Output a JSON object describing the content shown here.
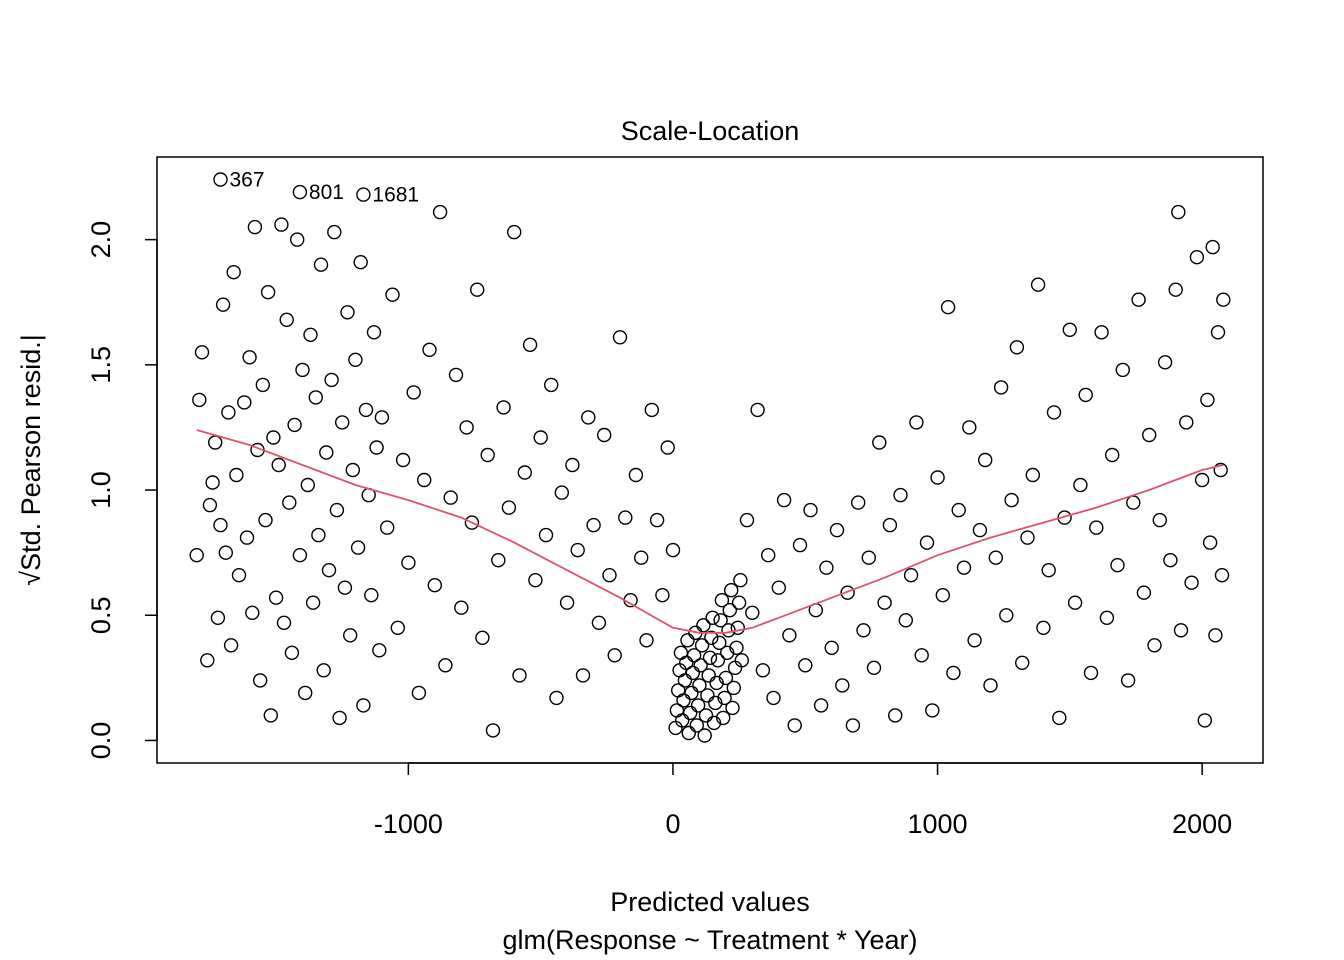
{
  "chart_data": {
    "type": "scatter",
    "title": "Scale-Location",
    "xlabel": "Predicted values",
    "xlabel_sub": "glm(Response ~ Treatment * Year)",
    "ylabel": "√Std. Pearson resid.|",
    "xlim": [
      -1950,
      2230
    ],
    "ylim": [
      -0.09,
      2.33
    ],
    "x_ticks": [
      -1000,
      0,
      1000,
      2000
    ],
    "x_tick_labels": [
      "-1000",
      "0",
      "1000",
      "2000"
    ],
    "y_ticks": [
      0.0,
      0.5,
      1.0,
      1.5,
      2.0
    ],
    "y_tick_labels": [
      "0.0",
      "0.5",
      "1.0",
      "1.5",
      "2.0"
    ],
    "grid": false,
    "legend": "none",
    "point_style": "open-circle",
    "point_color": "#000000",
    "smooth_color": "#DF536B",
    "labeled_points": [
      {
        "label": "367",
        "x": -1710,
        "y": 2.24
      },
      {
        "label": "801",
        "x": -1410,
        "y": 2.19
      },
      {
        "label": "1681",
        "x": -1170,
        "y": 2.18
      }
    ],
    "smooth_line": {
      "x": [
        -1800,
        -1600,
        -1400,
        -1200,
        -1000,
        -800,
        -600,
        -400,
        -200,
        -100,
        0,
        100,
        200,
        300,
        400,
        600,
        800,
        1000,
        1200,
        1400,
        1600,
        1800,
        2000,
        2080
      ],
      "y": [
        1.24,
        1.18,
        1.1,
        1.02,
        0.96,
        0.89,
        0.79,
        0.68,
        0.57,
        0.51,
        0.45,
        0.43,
        0.43,
        0.45,
        0.49,
        0.57,
        0.65,
        0.74,
        0.81,
        0.87,
        0.93,
        1.0,
        1.08,
        1.1
      ]
    },
    "points": [
      [
        -1800,
        0.74
      ],
      [
        -1790,
        1.36
      ],
      [
        -1780,
        1.55
      ],
      [
        -1760,
        0.32
      ],
      [
        -1750,
        0.94
      ],
      [
        -1740,
        1.03
      ],
      [
        -1730,
        1.19
      ],
      [
        -1720,
        0.49
      ],
      [
        -1710,
        0.86
      ],
      [
        -1700,
        1.74
      ],
      [
        -1690,
        0.75
      ],
      [
        -1680,
        1.31
      ],
      [
        -1670,
        0.38
      ],
      [
        -1660,
        1.87
      ],
      [
        -1650,
        1.06
      ],
      [
        -1640,
        0.66
      ],
      [
        -1620,
        1.35
      ],
      [
        -1610,
        0.81
      ],
      [
        -1600,
        1.53
      ],
      [
        -1590,
        0.51
      ],
      [
        -1580,
        2.05
      ],
      [
        -1570,
        1.16
      ],
      [
        -1560,
        0.24
      ],
      [
        -1550,
        1.42
      ],
      [
        -1540,
        0.88
      ],
      [
        -1530,
        1.79
      ],
      [
        -1520,
        0.1
      ],
      [
        -1510,
        1.21
      ],
      [
        -1500,
        0.57
      ],
      [
        -1490,
        1.1
      ],
      [
        -1480,
        2.06
      ],
      [
        -1470,
        0.47
      ],
      [
        -1460,
        1.68
      ],
      [
        -1450,
        0.95
      ],
      [
        -1440,
        0.35
      ],
      [
        -1430,
        1.26
      ],
      [
        -1420,
        2.0
      ],
      [
        -1410,
        0.74
      ],
      [
        -1400,
        1.48
      ],
      [
        -1390,
        0.19
      ],
      [
        -1380,
        1.02
      ],
      [
        -1370,
        1.62
      ],
      [
        -1360,
        0.55
      ],
      [
        -1350,
        1.37
      ],
      [
        -1340,
        0.82
      ],
      [
        -1330,
        1.9
      ],
      [
        -1320,
        0.28
      ],
      [
        -1310,
        1.15
      ],
      [
        -1300,
        0.68
      ],
      [
        -1290,
        1.44
      ],
      [
        -1280,
        2.03
      ],
      [
        -1270,
        0.92
      ],
      [
        -1260,
        0.09
      ],
      [
        -1250,
        1.27
      ],
      [
        -1240,
        0.61
      ],
      [
        -1230,
        1.71
      ],
      [
        -1220,
        0.42
      ],
      [
        -1210,
        1.08
      ],
      [
        -1200,
        1.52
      ],
      [
        -1190,
        0.77
      ],
      [
        -1180,
        1.91
      ],
      [
        -1170,
        0.14
      ],
      [
        -1160,
        1.32
      ],
      [
        -1150,
        0.98
      ],
      [
        -1140,
        0.58
      ],
      [
        -1130,
        1.63
      ],
      [
        -1120,
        1.17
      ],
      [
        -1110,
        0.36
      ],
      [
        -1100,
        1.29
      ],
      [
        -1080,
        0.85
      ],
      [
        -1060,
        1.78
      ],
      [
        -1040,
        0.45
      ],
      [
        -1020,
        1.12
      ],
      [
        -1000,
        0.71
      ],
      [
        -980,
        1.39
      ],
      [
        -960,
        0.19
      ],
      [
        -940,
        1.04
      ],
      [
        -920,
        1.56
      ],
      [
        -900,
        0.62
      ],
      [
        -880,
        2.11
      ],
      [
        -860,
        0.3
      ],
      [
        -840,
        0.97
      ],
      [
        -820,
        1.46
      ],
      [
        -800,
        0.53
      ],
      [
        -780,
        1.25
      ],
      [
        -760,
        0.87
      ],
      [
        -740,
        1.8
      ],
      [
        -720,
        0.41
      ],
      [
        -700,
        1.14
      ],
      [
        -680,
        0.04
      ],
      [
        -660,
        0.72
      ],
      [
        -640,
        1.33
      ],
      [
        -620,
        0.93
      ],
      [
        -600,
        2.03
      ],
      [
        -580,
        0.26
      ],
      [
        -560,
        1.07
      ],
      [
        -540,
        1.58
      ],
      [
        -520,
        0.64
      ],
      [
        -500,
        1.21
      ],
      [
        -480,
        0.82
      ],
      [
        -460,
        1.42
      ],
      [
        -440,
        0.17
      ],
      [
        -420,
        0.99
      ],
      [
        -400,
        0.55
      ],
      [
        -380,
        1.1
      ],
      [
        -360,
        0.76
      ],
      [
        -340,
        0.26
      ],
      [
        -320,
        1.29
      ],
      [
        -300,
        0.86
      ],
      [
        -280,
        0.47
      ],
      [
        -260,
        1.22
      ],
      [
        -240,
        0.66
      ],
      [
        -220,
        0.34
      ],
      [
        -200,
        1.61
      ],
      [
        -180,
        0.89
      ],
      [
        -160,
        0.56
      ],
      [
        -140,
        1.06
      ],
      [
        -120,
        0.73
      ],
      [
        -100,
        0.4
      ],
      [
        -80,
        1.32
      ],
      [
        -60,
        0.88
      ],
      [
        -40,
        0.58
      ],
      [
        -20,
        1.17
      ],
      [
        0,
        0.76
      ],
      [
        10,
        0.05
      ],
      [
        15,
        0.12
      ],
      [
        20,
        0.2
      ],
      [
        25,
        0.28
      ],
      [
        30,
        0.35
      ],
      [
        35,
        0.08
      ],
      [
        40,
        0.16
      ],
      [
        45,
        0.24
      ],
      [
        50,
        0.31
      ],
      [
        55,
        0.4
      ],
      [
        60,
        0.03
      ],
      [
        65,
        0.11
      ],
      [
        70,
        0.19
      ],
      [
        75,
        0.27
      ],
      [
        80,
        0.34
      ],
      [
        85,
        0.43
      ],
      [
        90,
        0.06
      ],
      [
        95,
        0.14
      ],
      [
        100,
        0.22
      ],
      [
        105,
        0.3
      ],
      [
        110,
        0.38
      ],
      [
        115,
        0.46
      ],
      [
        120,
        0.02
      ],
      [
        125,
        0.1
      ],
      [
        130,
        0.18
      ],
      [
        135,
        0.26
      ],
      [
        140,
        0.33
      ],
      [
        145,
        0.41
      ],
      [
        150,
        0.49
      ],
      [
        155,
        0.07
      ],
      [
        160,
        0.15
      ],
      [
        165,
        0.23
      ],
      [
        170,
        0.32
      ],
      [
        175,
        0.39
      ],
      [
        180,
        0.48
      ],
      [
        185,
        0.56
      ],
      [
        190,
        0.09
      ],
      [
        195,
        0.17
      ],
      [
        200,
        0.25
      ],
      [
        205,
        0.35
      ],
      [
        210,
        0.44
      ],
      [
        215,
        0.52
      ],
      [
        220,
        0.6
      ],
      [
        225,
        0.13
      ],
      [
        230,
        0.21
      ],
      [
        235,
        0.29
      ],
      [
        240,
        0.37
      ],
      [
        245,
        0.45
      ],
      [
        250,
        0.55
      ],
      [
        255,
        0.64
      ],
      [
        260,
        0.32
      ],
      [
        280,
        0.88
      ],
      [
        300,
        0.51
      ],
      [
        320,
        1.32
      ],
      [
        340,
        0.28
      ],
      [
        360,
        0.74
      ],
      [
        380,
        0.17
      ],
      [
        400,
        0.61
      ],
      [
        420,
        0.96
      ],
      [
        440,
        0.42
      ],
      [
        460,
        0.06
      ],
      [
        480,
        0.78
      ],
      [
        500,
        0.3
      ],
      [
        520,
        0.92
      ],
      [
        540,
        0.52
      ],
      [
        560,
        0.14
      ],
      [
        580,
        0.69
      ],
      [
        600,
        0.37
      ],
      [
        620,
        0.84
      ],
      [
        640,
        0.22
      ],
      [
        660,
        0.59
      ],
      [
        680,
        0.06
      ],
      [
        700,
        0.95
      ],
      [
        720,
        0.44
      ],
      [
        740,
        0.73
      ],
      [
        760,
        0.29
      ],
      [
        780,
        1.19
      ],
      [
        800,
        0.55
      ],
      [
        820,
        0.86
      ],
      [
        840,
        0.1
      ],
      [
        860,
        0.98
      ],
      [
        880,
        0.48
      ],
      [
        900,
        0.66
      ],
      [
        920,
        1.27
      ],
      [
        940,
        0.34
      ],
      [
        960,
        0.79
      ],
      [
        980,
        0.12
      ],
      [
        1000,
        1.05
      ],
      [
        1020,
        0.58
      ],
      [
        1040,
        1.73
      ],
      [
        1060,
        0.27
      ],
      [
        1080,
        0.92
      ],
      [
        1100,
        0.69
      ],
      [
        1120,
        1.25
      ],
      [
        1140,
        0.4
      ],
      [
        1160,
        0.84
      ],
      [
        1180,
        1.12
      ],
      [
        1200,
        0.22
      ],
      [
        1220,
        0.73
      ],
      [
        1240,
        1.41
      ],
      [
        1260,
        0.5
      ],
      [
        1280,
        0.96
      ],
      [
        1300,
        1.57
      ],
      [
        1320,
        0.31
      ],
      [
        1340,
        0.81
      ],
      [
        1360,
        1.06
      ],
      [
        1380,
        1.82
      ],
      [
        1400,
        0.45
      ],
      [
        1420,
        0.68
      ],
      [
        1440,
        1.31
      ],
      [
        1460,
        0.09
      ],
      [
        1480,
        0.89
      ],
      [
        1500,
        1.64
      ],
      [
        1520,
        0.55
      ],
      [
        1540,
        1.02
      ],
      [
        1560,
        1.38
      ],
      [
        1580,
        0.27
      ],
      [
        1600,
        0.85
      ],
      [
        1620,
        1.63
      ],
      [
        1640,
        0.49
      ],
      [
        1660,
        1.14
      ],
      [
        1680,
        0.7
      ],
      [
        1700,
        1.48
      ],
      [
        1720,
        0.24
      ],
      [
        1740,
        0.95
      ],
      [
        1760,
        1.76
      ],
      [
        1780,
        0.59
      ],
      [
        1800,
        1.22
      ],
      [
        1820,
        0.38
      ],
      [
        1840,
        0.88
      ],
      [
        1860,
        1.51
      ],
      [
        1880,
        0.72
      ],
      [
        1900,
        1.8
      ],
      [
        1910,
        2.11
      ],
      [
        1920,
        0.44
      ],
      [
        1940,
        1.27
      ],
      [
        1960,
        0.63
      ],
      [
        1980,
        1.93
      ],
      [
        2000,
        1.04
      ],
      [
        2010,
        0.08
      ],
      [
        2020,
        1.36
      ],
      [
        2030,
        0.79
      ],
      [
        2040,
        1.97
      ],
      [
        2050,
        0.42
      ],
      [
        2060,
        1.63
      ],
      [
        2070,
        1.08
      ],
      [
        2075,
        0.66
      ],
      [
        2080,
        1.76
      ]
    ]
  }
}
